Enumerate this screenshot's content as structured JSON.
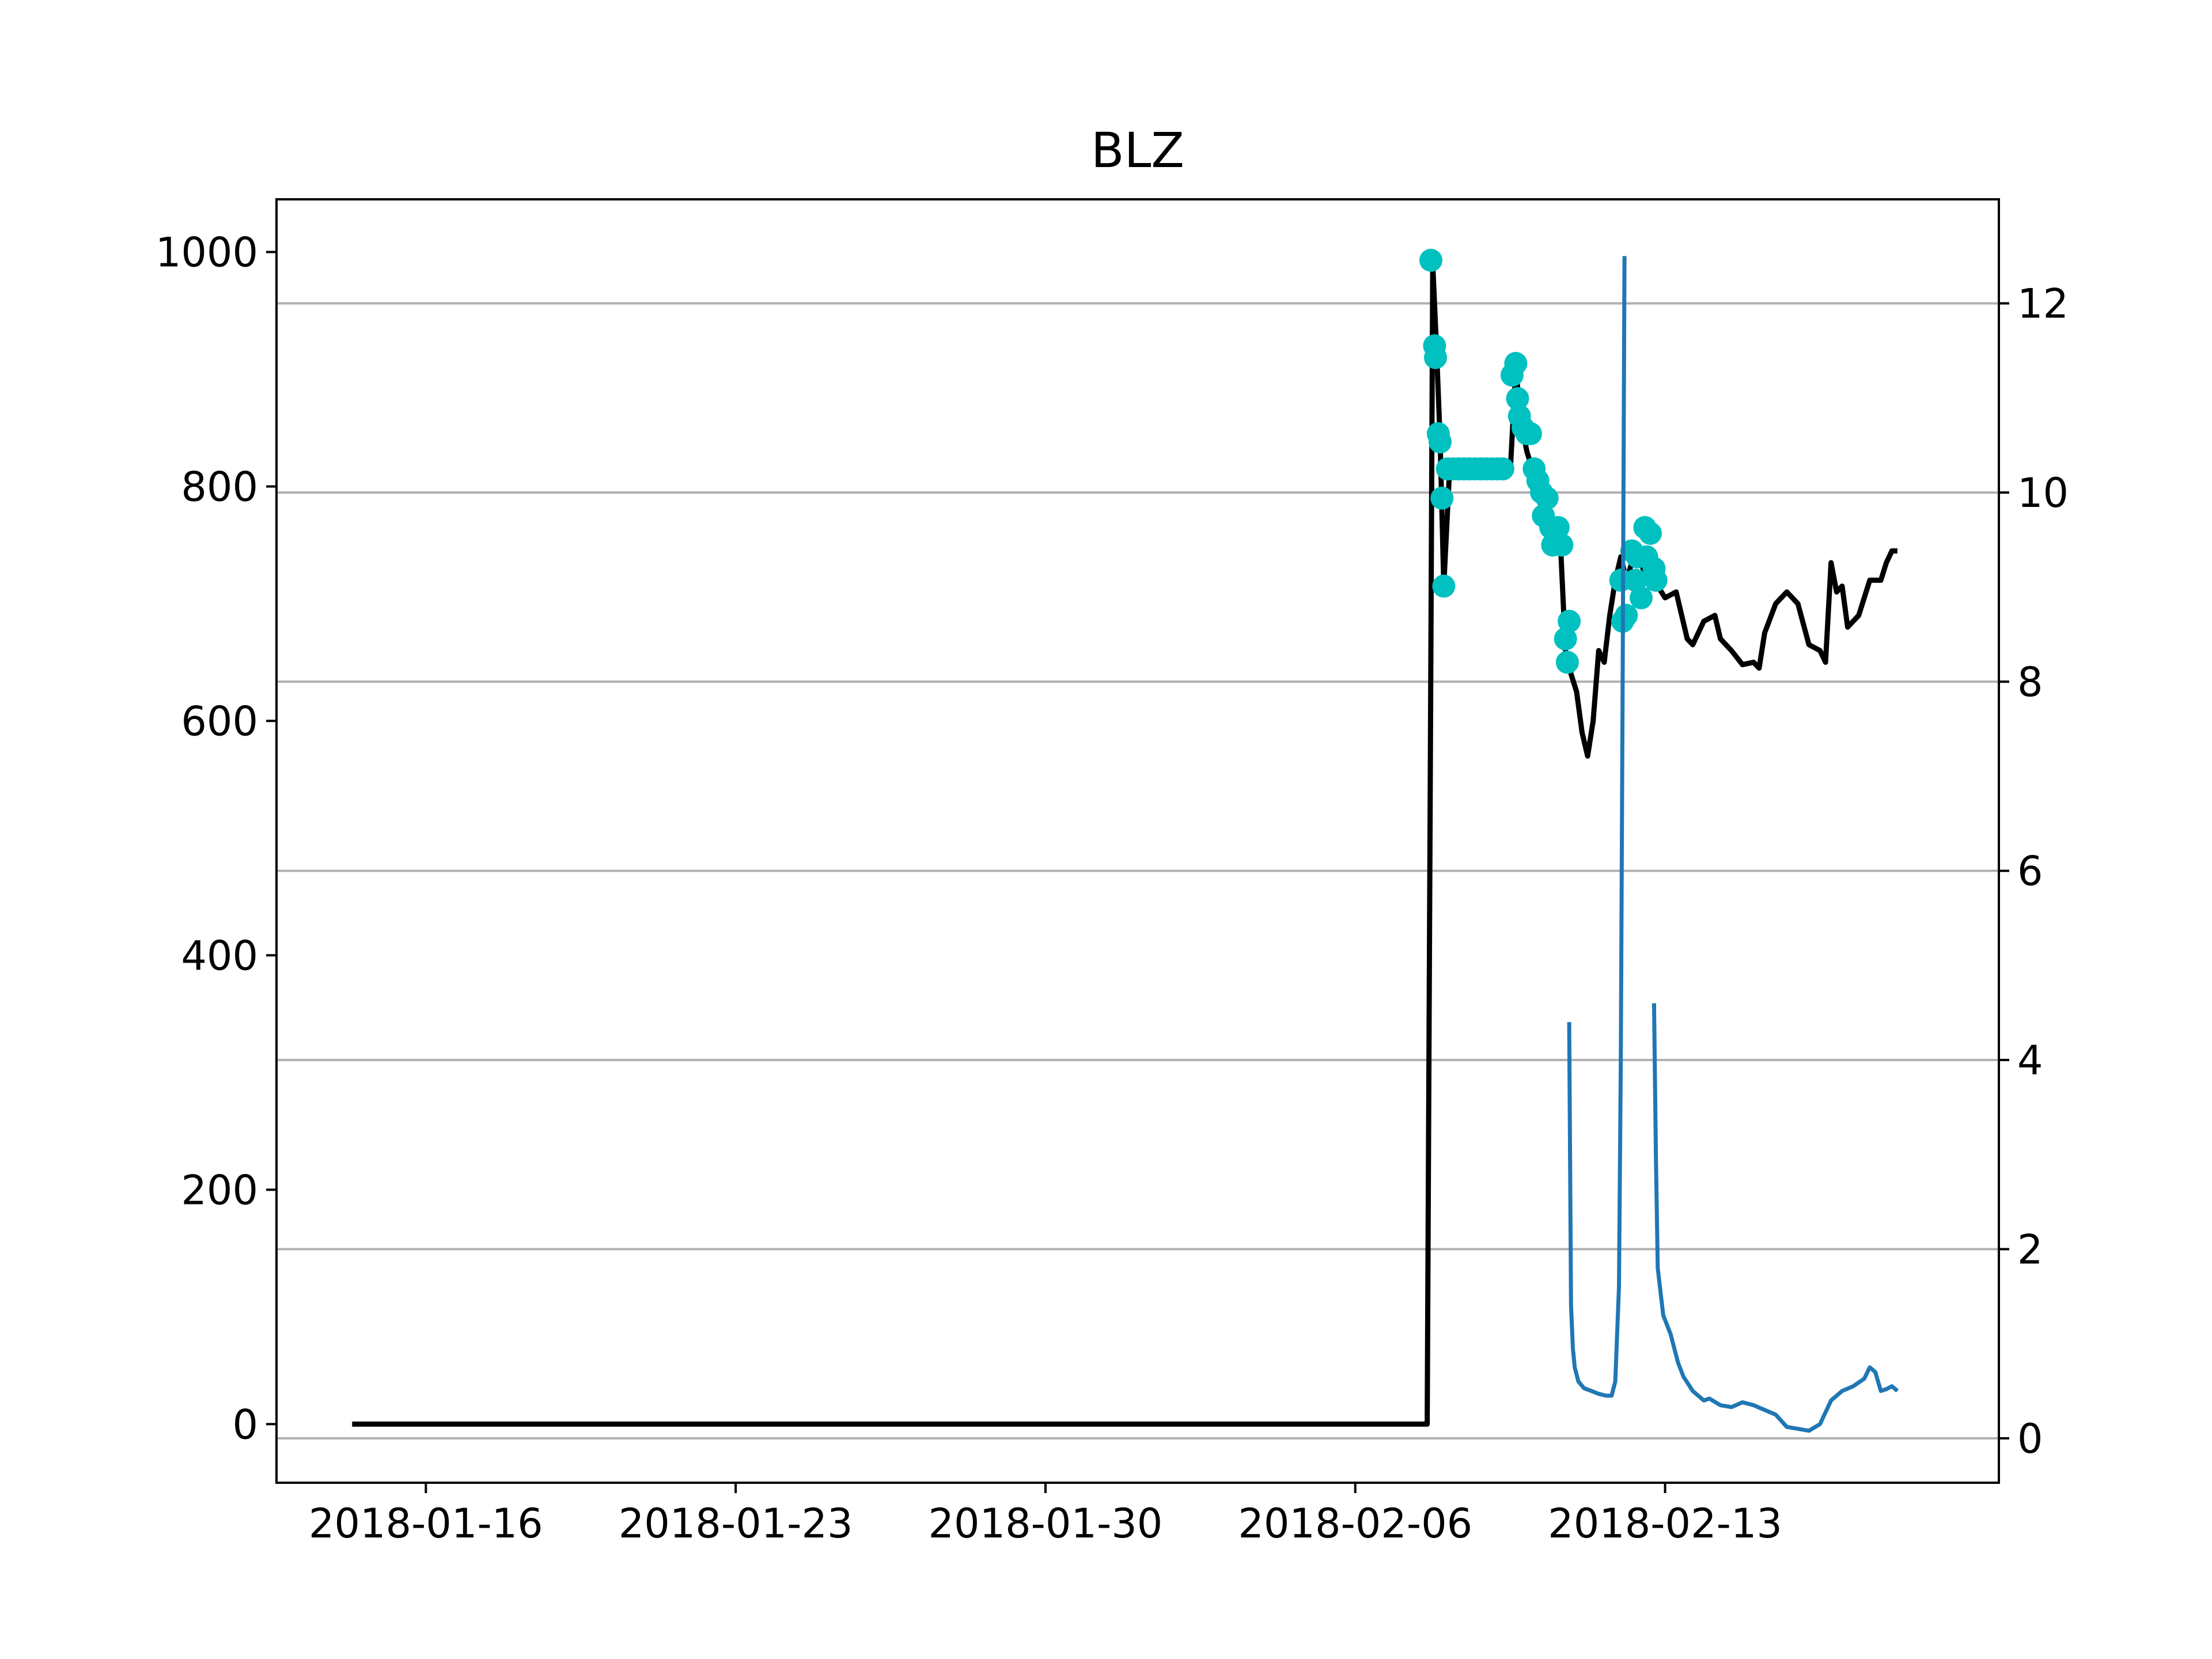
{
  "chart_data": {
    "type": "line",
    "title": "BLZ",
    "xlabel": "",
    "ylabel": "",
    "x_ticks": [
      "2018-01-16",
      "2018-01-23",
      "2018-01-30",
      "2018-02-06",
      "2018-02-13"
    ],
    "y_left_ticks": [
      "0",
      "200",
      "400",
      "600",
      "800",
      "1000"
    ],
    "y_right_ticks": [
      "0",
      "2",
      "4",
      "6",
      "8",
      "10",
      "12"
    ],
    "xlim": [
      "2018-01-12 15:00",
      "2018-02-20 13:00"
    ],
    "ylim_left": [
      -50,
      1045
    ],
    "ylim_right": [
      -0.47,
      13.1
    ],
    "grid": "horizontal lines at right-axis ticks",
    "colors": {
      "price_line": "#000000",
      "markers": "#00c0c0",
      "right_series": "#1f77b4",
      "grid": "#b0b0b0"
    },
    "series": [
      {
        "axis": "left",
        "style": "line",
        "color": "#000000",
        "points": [
          [
            "2018-01-14 08:00",
            0
          ],
          [
            "2018-02-07 15:00",
            0
          ],
          [
            "2018-02-07 18:00",
            990
          ],
          [
            "2018-02-07 20:00",
            920
          ],
          [
            "2018-02-07 22:00",
            840
          ],
          [
            "2018-02-08 00:00",
            715
          ],
          [
            "2018-02-08 03:00",
            810
          ],
          [
            "2018-02-09 12:00",
            812
          ],
          [
            "2018-02-09 15:00",
            900
          ],
          [
            "2018-02-09 18:00",
            855
          ],
          [
            "2018-02-09 21:00",
            830
          ],
          [
            "2018-02-10 00:00",
            815
          ],
          [
            "2018-02-10 06:00",
            790
          ],
          [
            "2018-02-10 12:00",
            765
          ],
          [
            "2018-02-10 15:00",
            760
          ],
          [
            "2018-02-10 18:00",
            660
          ],
          [
            "2018-02-10 21:00",
            640
          ],
          [
            "2018-02-11 00:00",
            625
          ],
          [
            "2018-02-11 03:00",
            590
          ],
          [
            "2018-02-11 06:00",
            570
          ],
          [
            "2018-02-11 09:00",
            600
          ],
          [
            "2018-02-11 12:00",
            660
          ],
          [
            "2018-02-11 15:00",
            650
          ],
          [
            "2018-02-11 18:00",
            690
          ],
          [
            "2018-02-11 21:00",
            720
          ],
          [
            "2018-02-12 00:00",
            740
          ],
          [
            "2018-02-12 03:00",
            720
          ],
          [
            "2018-02-12 06:00",
            735
          ],
          [
            "2018-02-12 09:00",
            745
          ],
          [
            "2018-02-12 12:00",
            730
          ],
          [
            "2018-02-12 15:00",
            725
          ],
          [
            "2018-02-12 18:00",
            720
          ],
          [
            "2018-02-13 00:00",
            705
          ],
          [
            "2018-02-13 06:00",
            710
          ],
          [
            "2018-02-13 12:00",
            670
          ],
          [
            "2018-02-13 15:00",
            665
          ],
          [
            "2018-02-13 21:00",
            685
          ],
          [
            "2018-02-14 03:00",
            690
          ],
          [
            "2018-02-14 06:00",
            670
          ],
          [
            "2018-02-14 12:00",
            660
          ],
          [
            "2018-02-14 18:00",
            648
          ],
          [
            "2018-02-15 00:00",
            650
          ],
          [
            "2018-02-15 03:00",
            645
          ],
          [
            "2018-02-15 06:00",
            675
          ],
          [
            "2018-02-15 12:00",
            700
          ],
          [
            "2018-02-15 18:00",
            710
          ],
          [
            "2018-02-16 00:00",
            700
          ],
          [
            "2018-02-16 06:00",
            665
          ],
          [
            "2018-02-16 12:00",
            660
          ],
          [
            "2018-02-16 15:00",
            650
          ],
          [
            "2018-02-16 18:00",
            735
          ],
          [
            "2018-02-16 21:00",
            710
          ],
          [
            "2018-02-17 00:00",
            715
          ],
          [
            "2018-02-17 03:00",
            680
          ],
          [
            "2018-02-17 09:00",
            690
          ],
          [
            "2018-02-17 15:00",
            720
          ],
          [
            "2018-02-17 21:00",
            720
          ],
          [
            "2018-02-18 00:00",
            735
          ],
          [
            "2018-02-18 03:00",
            745
          ],
          [
            "2018-02-18 06:00",
            745
          ]
        ]
      },
      {
        "axis": "left",
        "style": "markers",
        "color": "#00c0c0",
        "points": [
          [
            "2018-02-07 17:00",
            993
          ],
          [
            "2018-02-07 19:00",
            920
          ],
          [
            "2018-02-07 19:30",
            910
          ],
          [
            "2018-02-07 21:00",
            845
          ],
          [
            "2018-02-07 22:00",
            838
          ],
          [
            "2018-02-07 23:00",
            790
          ],
          [
            "2018-02-08 00:00",
            715
          ],
          [
            "2018-02-08 02:00",
            815
          ],
          [
            "2018-02-08 05:00",
            815
          ],
          [
            "2018-02-08 08:00",
            815
          ],
          [
            "2018-02-08 11:00",
            815
          ],
          [
            "2018-02-08 14:00",
            815
          ],
          [
            "2018-02-08 17:00",
            815
          ],
          [
            "2018-02-08 20:00",
            815
          ],
          [
            "2018-02-08 23:00",
            815
          ],
          [
            "2018-02-09 02:00",
            815
          ],
          [
            "2018-02-09 05:00",
            815
          ],
          [
            "2018-02-09 08:00",
            815
          ],
          [
            "2018-02-09 13:00",
            895
          ],
          [
            "2018-02-09 15:00",
            905
          ],
          [
            "2018-02-09 16:00",
            875
          ],
          [
            "2018-02-09 17:00",
            860
          ],
          [
            "2018-02-09 19:00",
            850
          ],
          [
            "2018-02-09 21:00",
            845
          ],
          [
            "2018-02-09 23:00",
            845
          ],
          [
            "2018-02-10 01:00",
            815
          ],
          [
            "2018-02-10 03:00",
            805
          ],
          [
            "2018-02-10 05:00",
            795
          ],
          [
            "2018-02-10 06:00",
            775
          ],
          [
            "2018-02-10 08:00",
            790
          ],
          [
            "2018-02-10 10:00",
            765
          ],
          [
            "2018-02-10 11:00",
            750
          ],
          [
            "2018-02-10 14:00",
            765
          ],
          [
            "2018-02-10 16:00",
            750
          ],
          [
            "2018-02-10 18:00",
            670
          ],
          [
            "2018-02-10 19:00",
            650
          ],
          [
            "2018-02-10 20:00",
            685
          ],
          [
            "2018-02-12 00:00",
            720
          ],
          [
            "2018-02-12 01:00",
            685
          ],
          [
            "2018-02-12 03:00",
            690
          ],
          [
            "2018-02-12 06:00",
            745
          ],
          [
            "2018-02-12 08:00",
            720
          ],
          [
            "2018-02-12 09:00",
            740
          ],
          [
            "2018-02-12 11:00",
            705
          ],
          [
            "2018-02-12 13:00",
            765
          ],
          [
            "2018-02-12 14:00",
            740
          ],
          [
            "2018-02-12 16:00",
            760
          ],
          [
            "2018-02-12 18:00",
            730
          ],
          [
            "2018-02-12 19:00",
            720
          ]
        ]
      },
      {
        "axis": "right",
        "style": "line",
        "color": "#1f77b4",
        "segments": [
          [
            [
              "2018-02-10 20:00",
              4.4
            ],
            [
              "2018-02-10 21:00",
              1.4
            ],
            [
              "2018-02-10 22:00",
              0.95
            ],
            [
              "2018-02-10 23:00",
              0.75
            ],
            [
              "2018-02-11 01:00",
              0.6
            ],
            [
              "2018-02-11 04:00",
              0.53
            ],
            [
              "2018-02-11 08:00",
              0.5
            ],
            [
              "2018-02-11 12:00",
              0.47
            ],
            [
              "2018-02-11 16:00",
              0.45
            ],
            [
              "2018-02-11 19:00",
              0.45
            ],
            [
              "2018-02-11 21:00",
              0.6
            ],
            [
              "2018-02-11 23:00",
              1.6
            ],
            [
              "2018-02-12 00:00",
              4.0
            ],
            [
              "2018-02-12 01:00",
              8.0
            ],
            [
              "2018-02-12 02:00",
              12.5
            ]
          ],
          [
            [
              "2018-02-12 18:00",
              4.6
            ],
            [
              "2018-02-12 19:00",
              3.0
            ],
            [
              "2018-02-12 20:00",
              1.8
            ],
            [
              "2018-02-12 23:00",
              1.3
            ],
            [
              "2018-02-13 03:00",
              1.1
            ],
            [
              "2018-02-13 07:00",
              0.8
            ],
            [
              "2018-02-13 10:00",
              0.65
            ],
            [
              "2018-02-13 15:00",
              0.5
            ],
            [
              "2018-02-13 21:00",
              0.4
            ],
            [
              "2018-02-14 00:00",
              0.42
            ],
            [
              "2018-02-14 06:00",
              0.35
            ],
            [
              "2018-02-14 12:00",
              0.33
            ],
            [
              "2018-02-14 18:00",
              0.38
            ],
            [
              "2018-02-15 00:00",
              0.35
            ],
            [
              "2018-02-15 06:00",
              0.3
            ],
            [
              "2018-02-15 12:00",
              0.25
            ],
            [
              "2018-02-15 18:00",
              0.12
            ],
            [
              "2018-02-16 00:00",
              0.1
            ],
            [
              "2018-02-16 06:00",
              0.08
            ],
            [
              "2018-02-16 12:00",
              0.15
            ],
            [
              "2018-02-16 18:00",
              0.4
            ],
            [
              "2018-02-17 00:00",
              0.5
            ],
            [
              "2018-02-17 06:00",
              0.55
            ],
            [
              "2018-02-17 12:00",
              0.63
            ],
            [
              "2018-02-17 15:00",
              0.75
            ],
            [
              "2018-02-17 18:00",
              0.7
            ],
            [
              "2018-02-17 21:00",
              0.5
            ],
            [
              "2018-02-18 00:00",
              0.52
            ],
            [
              "2018-02-18 03:00",
              0.55
            ],
            [
              "2018-02-18 06:00",
              0.5
            ]
          ]
        ]
      }
    ]
  }
}
